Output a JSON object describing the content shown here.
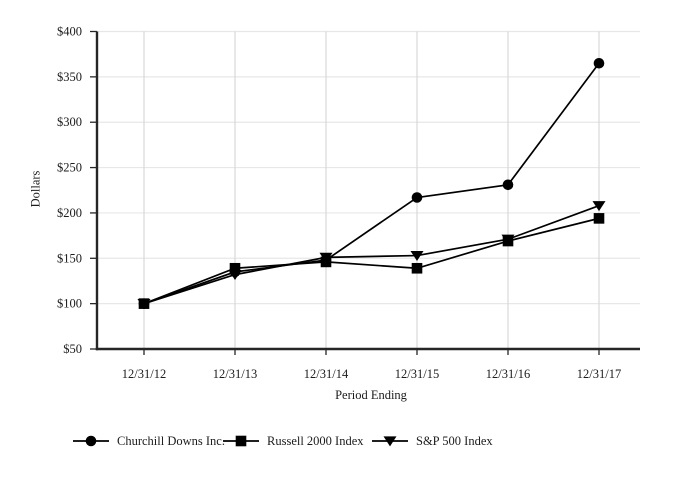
{
  "chart_data": {
    "type": "line",
    "title": "",
    "xlabel": "Period Ending",
    "ylabel": "Dollars",
    "categories": [
      "12/31/12",
      "12/31/13",
      "12/31/14",
      "12/31/15",
      "12/31/16",
      "12/31/17"
    ],
    "series": [
      {
        "name": "Churchill Downs Inc.",
        "marker": "circle",
        "values": [
          100,
          135,
          148,
          217,
          231,
          365
        ]
      },
      {
        "name": "Russell 2000 Index",
        "marker": "square",
        "values": [
          100,
          139,
          146,
          139,
          169,
          194
        ]
      },
      {
        "name": "S&P 500 Index",
        "marker": "triangle-down",
        "values": [
          100,
          132,
          151,
          153,
          171,
          208
        ]
      }
    ],
    "ylim": [
      50,
      400
    ],
    "ytick_step": 50,
    "ytick_labels": [
      "$50",
      "$100",
      "$150",
      "$200",
      "$250",
      "$300",
      "$350",
      "$400"
    ],
    "grid": true,
    "legend_position": "bottom",
    "colors": {
      "series": "#000000",
      "axis": "#262626",
      "text": "#1c1c1c",
      "h_gridline": "#e7e7e7",
      "v_gridline": "#d8d8d8",
      "background": "#ffffff"
    }
  }
}
